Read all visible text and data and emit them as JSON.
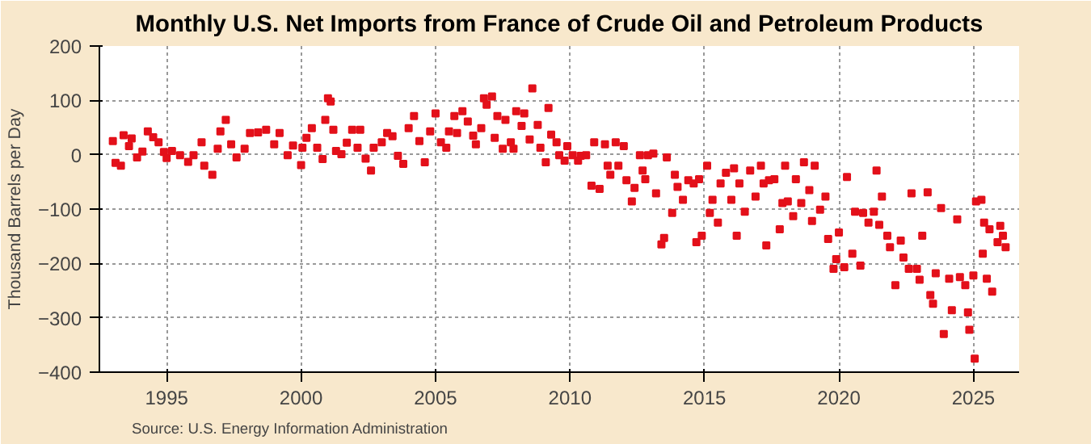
{
  "chart_data": {
    "type": "scatter",
    "title": "Monthly U.S. Net Imports from France of Crude Oil and Petroleum Products",
    "ylabel": "Thousand Barrels per Day",
    "annotations": [
      "Source: U.S. Energy Information Administration"
    ],
    "x": [
      1993.0,
      1993.1,
      1993.3,
      1993.4,
      1993.6,
      1993.7,
      1993.9,
      1994.1,
      1994.3,
      1994.5,
      1994.7,
      1994.9,
      1995.0,
      1995.2,
      1995.5,
      1995.8,
      1996.0,
      1996.3,
      1996.4,
      1996.7,
      1996.9,
      1997.0,
      1997.2,
      1997.4,
      1997.6,
      1997.9,
      1998.1,
      1998.4,
      1998.7,
      1999.0,
      1999.2,
      1999.5,
      1999.7,
      2000.0,
      2000.05,
      2000.2,
      2000.4,
      2000.6,
      2000.8,
      2000.9,
      2001.0,
      2001.1,
      2001.2,
      2001.3,
      2001.5,
      2001.7,
      2001.9,
      2002.1,
      2002.2,
      2002.4,
      2002.6,
      2002.7,
      2003.0,
      2003.2,
      2003.4,
      2003.6,
      2003.8,
      2004.0,
      2004.2,
      2004.4,
      2004.6,
      2004.8,
      2005.0,
      2005.2,
      2005.4,
      2005.5,
      2005.7,
      2005.8,
      2006.0,
      2006.2,
      2006.4,
      2006.5,
      2006.7,
      2006.8,
      2006.9,
      2007.1,
      2007.2,
      2007.3,
      2007.5,
      2007.6,
      2007.8,
      2007.9,
      2008.0,
      2008.2,
      2008.3,
      2008.5,
      2008.6,
      2008.8,
      2008.9,
      2009.1,
      2009.2,
      2009.3,
      2009.5,
      2009.6,
      2009.8,
      2009.9,
      2010.1,
      2010.3,
      2010.4,
      2010.6,
      2010.8,
      2010.9,
      2011.1,
      2011.3,
      2011.4,
      2011.5,
      2011.7,
      2011.8,
      2012.0,
      2012.1,
      2012.3,
      2012.4,
      2012.6,
      2012.7,
      2012.8,
      2012.9,
      2013.1,
      2013.2,
      2013.4,
      2013.5,
      2013.6,
      2013.8,
      2013.9,
      2014.0,
      2014.2,
      2014.4,
      2014.6,
      2014.7,
      2014.8,
      2014.9,
      2015.1,
      2015.2,
      2015.3,
      2015.5,
      2015.6,
      2015.8,
      2016.0,
      2016.1,
      2016.2,
      2016.3,
      2016.5,
      2016.7,
      2016.9,
      2017.1,
      2017.2,
      2017.3,
      2017.4,
      2017.6,
      2017.8,
      2017.9,
      2018.0,
      2018.1,
      2018.3,
      2018.4,
      2018.6,
      2018.7,
      2018.9,
      2019.0,
      2019.1,
      2019.3,
      2019.5,
      2019.6,
      2019.8,
      2019.9,
      2020.0,
      2020.2,
      2020.3,
      2020.5,
      2020.6,
      2020.8,
      2020.9,
      2021.1,
      2021.3,
      2021.4,
      2021.5,
      2021.6,
      2021.8,
      2021.9,
      2022.1,
      2022.3,
      2022.4,
      2022.6,
      2022.7,
      2022.9,
      2023.0,
      2023.1,
      2023.3,
      2023.4,
      2023.5,
      2023.6,
      2023.8,
      2023.9,
      2024.1,
      2024.2,
      2024.4,
      2024.5,
      2024.7,
      2024.8,
      2024.85,
      2025.0,
      2025.05,
      2025.1,
      2025.3,
      2025.35,
      2025.4,
      2025.5,
      2025.6,
      2025.7,
      2025.9,
      2026.0,
      2026.1,
      2026.2
    ],
    "values": [
      25,
      -15,
      -20,
      36,
      16,
      30,
      -5,
      6,
      43,
      32,
      23,
      5,
      -6,
      7,
      -1,
      -13,
      -1,
      23,
      -20,
      -37,
      11,
      43,
      64,
      19,
      -5,
      11,
      40,
      41,
      46,
      19,
      40,
      -1,
      17,
      -19,
      13,
      31,
      49,
      13,
      -8,
      64,
      104,
      98,
      46,
      7,
      1,
      22,
      46,
      13,
      46,
      -7,
      -29,
      13,
      23,
      40,
      34,
      -2,
      -17,
      49,
      71,
      25,
      -14,
      43,
      76,
      23,
      13,
      43,
      71,
      40,
      80,
      61,
      35,
      19,
      49,
      104,
      92,
      107,
      31,
      71,
      11,
      64,
      23,
      11,
      80,
      53,
      76,
      28,
      122,
      55,
      13,
      -14,
      86,
      37,
      23,
      -1,
      -11,
      16,
      -1,
      -11,
      -2,
      -1,
      -57,
      23,
      -63,
      19,
      -20,
      -37,
      23,
      -20,
      16,
      -47,
      -86,
      -61,
      -1,
      -29,
      -45,
      -1,
      2,
      -71,
      -165,
      -153,
      -5,
      -107,
      -37,
      -59,
      -83,
      -47,
      -53,
      -161,
      -45,
      -149,
      -20,
      -107,
      -83,
      -125,
      -53,
      -33,
      -83,
      -25,
      -149,
      -53,
      -105,
      -29,
      -77,
      -20,
      -53,
      -167,
      -47,
      -45,
      -137,
      -89,
      -20,
      -86,
      -113,
      -45,
      -89,
      -14,
      -65,
      -122,
      -20,
      -101,
      -77,
      -155,
      -210,
      -192,
      -143,
      -207,
      -41,
      -182,
      -105,
      -204,
      -107,
      -125,
      -105,
      -29,
      -129,
      -77,
      -149,
      -170,
      -240,
      -158,
      -189,
      -210,
      -71,
      -210,
      -230,
      -149,
      -69,
      -258,
      -274,
      -218,
      -98,
      -330,
      -228,
      -286,
      -119,
      -225,
      -240,
      -290,
      -322,
      -222,
      -375,
      -86,
      -83,
      -182,
      -125,
      -228,
      -137,
      -252,
      -161,
      -131,
      -149,
      -170
    ],
    "color": "#e3101a",
    "marker": "square",
    "xlim": [
      1992.5,
      2026.7
    ],
    "xticks": [
      1995,
      2000,
      2005,
      2010,
      2015,
      2020,
      2025
    ],
    "ylim": [
      -400,
      200
    ],
    "yticks": [
      -400,
      -300,
      -200,
      -100,
      0,
      100,
      200
    ],
    "grid": true
  }
}
